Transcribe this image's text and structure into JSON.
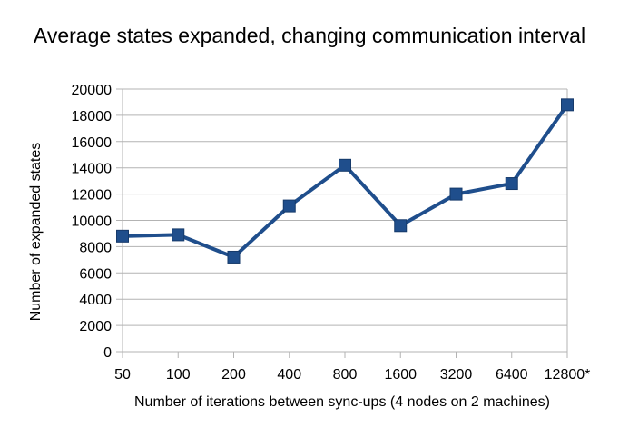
{
  "chart_data": {
    "type": "line",
    "title": "Average states expanded, changing communication interval",
    "xlabel": "Number of iterations between sync-ups (4 nodes on 2 machines)",
    "ylabel": "Number of expanded states",
    "categories": [
      "50",
      "100",
      "200",
      "400",
      "800",
      "1600",
      "3200",
      "6400",
      "12800*"
    ],
    "series": [
      {
        "values": [
          8800,
          8900,
          7200,
          11100,
          14200,
          9600,
          12000,
          12800,
          18800
        ]
      }
    ],
    "ylim": [
      0,
      20000
    ],
    "yticks": [
      0,
      2000,
      4000,
      6000,
      8000,
      10000,
      12000,
      14000,
      16000,
      18000,
      20000
    ],
    "grid": "horizontal",
    "legend": "none",
    "colors": {
      "line": "#1f4e8c",
      "grid": "#b3b3b3",
      "axis": "#b3b3b3"
    }
  }
}
